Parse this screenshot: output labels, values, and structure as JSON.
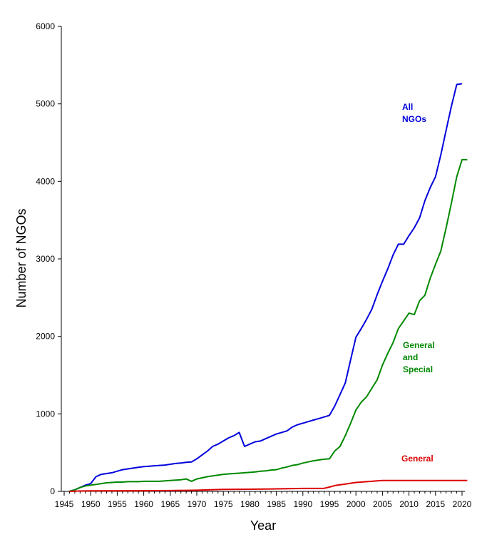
{
  "chart_data": {
    "type": "line",
    "xlabel": "Year",
    "ylabel": "Number of NGOs",
    "xlim": [
      1945,
      2021
    ],
    "ylim": [
      0,
      6000
    ],
    "x_ticks": [
      1945,
      1950,
      1955,
      1960,
      1965,
      1970,
      1975,
      1980,
      1985,
      1990,
      1995,
      2000,
      2005,
      2010,
      2015,
      2020
    ],
    "y_ticks": [
      0,
      1000,
      2000,
      3000,
      4000,
      5000,
      6000
    ],
    "grid": false,
    "colors": {
      "all": "#0000dd",
      "general_special": "#008800",
      "general": "#dd0000"
    },
    "series": [
      {
        "name": "All NGOs",
        "label_lines": [
          "All",
          "NGOs"
        ],
        "color": "#0000dd",
        "points": [
          [
            1946,
            0
          ],
          [
            1947,
            20
          ],
          [
            1948,
            50
          ],
          [
            1949,
            80
          ],
          [
            1950,
            100
          ],
          [
            1951,
            190
          ],
          [
            1952,
            220
          ],
          [
            1953,
            230
          ],
          [
            1954,
            240
          ],
          [
            1955,
            260
          ],
          [
            1956,
            280
          ],
          [
            1957,
            290
          ],
          [
            1958,
            300
          ],
          [
            1959,
            310
          ],
          [
            1960,
            320
          ],
          [
            1961,
            325
          ],
          [
            1962,
            330
          ],
          [
            1963,
            335
          ],
          [
            1964,
            340
          ],
          [
            1965,
            350
          ],
          [
            1966,
            360
          ],
          [
            1967,
            365
          ],
          [
            1968,
            375
          ],
          [
            1969,
            380
          ],
          [
            1970,
            420
          ],
          [
            1971,
            470
          ],
          [
            1972,
            520
          ],
          [
            1973,
            580
          ],
          [
            1974,
            610
          ],
          [
            1975,
            650
          ],
          [
            1976,
            690
          ],
          [
            1977,
            720
          ],
          [
            1978,
            760
          ],
          [
            1979,
            580
          ],
          [
            1980,
            610
          ],
          [
            1981,
            640
          ],
          [
            1982,
            650
          ],
          [
            1983,
            680
          ],
          [
            1984,
            710
          ],
          [
            1985,
            740
          ],
          [
            1986,
            760
          ],
          [
            1987,
            780
          ],
          [
            1988,
            830
          ],
          [
            1989,
            860
          ],
          [
            1990,
            880
          ],
          [
            1991,
            900
          ],
          [
            1992,
            920
          ],
          [
            1993,
            940
          ],
          [
            1994,
            960
          ],
          [
            1995,
            980
          ],
          [
            1996,
            1100
          ],
          [
            1997,
            1250
          ],
          [
            1998,
            1400
          ],
          [
            1999,
            1700
          ],
          [
            2000,
            1990
          ],
          [
            2001,
            2100
          ],
          [
            2002,
            2220
          ],
          [
            2003,
            2350
          ],
          [
            2004,
            2540
          ],
          [
            2005,
            2710
          ],
          [
            2006,
            2870
          ],
          [
            2007,
            3050
          ],
          [
            2008,
            3190
          ],
          [
            2009,
            3190
          ],
          [
            2010,
            3300
          ],
          [
            2011,
            3400
          ],
          [
            2012,
            3530
          ],
          [
            2013,
            3750
          ],
          [
            2014,
            3920
          ],
          [
            2015,
            4060
          ],
          [
            2016,
            4340
          ],
          [
            2017,
            4660
          ],
          [
            2018,
            4970
          ],
          [
            2019,
            5250
          ],
          [
            2020,
            5260
          ]
        ]
      },
      {
        "name": "General and Special",
        "label_lines": [
          "General",
          "and",
          "Special"
        ],
        "color": "#008800",
        "points": [
          [
            1946,
            0
          ],
          [
            1947,
            20
          ],
          [
            1948,
            50
          ],
          [
            1949,
            70
          ],
          [
            1950,
            80
          ],
          [
            1951,
            90
          ],
          [
            1952,
            100
          ],
          [
            1953,
            110
          ],
          [
            1954,
            115
          ],
          [
            1955,
            120
          ],
          [
            1956,
            120
          ],
          [
            1957,
            125
          ],
          [
            1958,
            125
          ],
          [
            1959,
            125
          ],
          [
            1960,
            130
          ],
          [
            1961,
            130
          ],
          [
            1962,
            130
          ],
          [
            1963,
            130
          ],
          [
            1964,
            135
          ],
          [
            1965,
            140
          ],
          [
            1966,
            145
          ],
          [
            1967,
            150
          ],
          [
            1968,
            160
          ],
          [
            1969,
            130
          ],
          [
            1970,
            160
          ],
          [
            1971,
            175
          ],
          [
            1972,
            190
          ],
          [
            1973,
            200
          ],
          [
            1974,
            210
          ],
          [
            1975,
            220
          ],
          [
            1976,
            225
          ],
          [
            1977,
            230
          ],
          [
            1978,
            235
          ],
          [
            1979,
            240
          ],
          [
            1980,
            245
          ],
          [
            1981,
            250
          ],
          [
            1982,
            260
          ],
          [
            1983,
            265
          ],
          [
            1984,
            275
          ],
          [
            1985,
            280
          ],
          [
            1986,
            300
          ],
          [
            1987,
            315
          ],
          [
            1988,
            335
          ],
          [
            1989,
            345
          ],
          [
            1990,
            365
          ],
          [
            1991,
            380
          ],
          [
            1992,
            395
          ],
          [
            1993,
            405
          ],
          [
            1994,
            415
          ],
          [
            1995,
            420
          ],
          [
            1996,
            520
          ],
          [
            1997,
            580
          ],
          [
            1998,
            720
          ],
          [
            1999,
            880
          ],
          [
            2000,
            1050
          ],
          [
            2001,
            1150
          ],
          [
            2002,
            1220
          ],
          [
            2003,
            1330
          ],
          [
            2004,
            1440
          ],
          [
            2005,
            1630
          ],
          [
            2006,
            1780
          ],
          [
            2007,
            1920
          ],
          [
            2008,
            2100
          ],
          [
            2009,
            2200
          ],
          [
            2010,
            2300
          ],
          [
            2011,
            2280
          ],
          [
            2012,
            2460
          ],
          [
            2013,
            2530
          ],
          [
            2014,
            2750
          ],
          [
            2015,
            2930
          ],
          [
            2016,
            3100
          ],
          [
            2017,
            3400
          ],
          [
            2018,
            3720
          ],
          [
            2019,
            4060
          ],
          [
            2020,
            4280
          ],
          [
            2021,
            4280
          ]
        ]
      },
      {
        "name": "General",
        "label_lines": [
          "General"
        ],
        "color": "#dd0000",
        "points": [
          [
            1946,
            0
          ],
          [
            1948,
            5
          ],
          [
            1950,
            7
          ],
          [
            1960,
            8
          ],
          [
            1965,
            10
          ],
          [
            1970,
            15
          ],
          [
            1975,
            25
          ],
          [
            1980,
            28
          ],
          [
            1985,
            32
          ],
          [
            1990,
            38
          ],
          [
            1994,
            40
          ],
          [
            1995,
            55
          ],
          [
            1996,
            75
          ],
          [
            1997,
            85
          ],
          [
            1998,
            95
          ],
          [
            1999,
            105
          ],
          [
            2000,
            115
          ],
          [
            2001,
            120
          ],
          [
            2002,
            125
          ],
          [
            2003,
            130
          ],
          [
            2004,
            135
          ],
          [
            2005,
            140
          ],
          [
            2008,
            140
          ],
          [
            2010,
            140
          ],
          [
            2015,
            140
          ],
          [
            2020,
            140
          ],
          [
            2021,
            140
          ]
        ]
      }
    ]
  }
}
